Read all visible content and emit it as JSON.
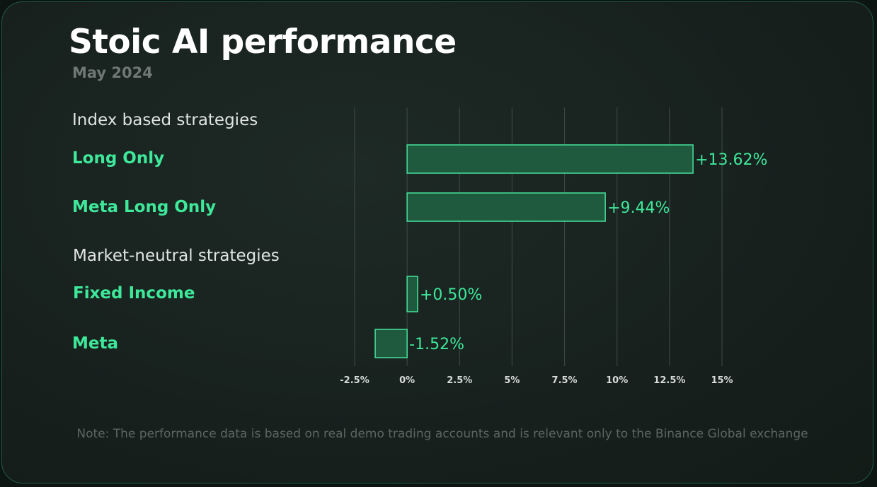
{
  "header": {
    "title": "Stoic AI performance",
    "subtitle": "May 2024"
  },
  "sections": [
    {
      "label": "Index based strategies"
    },
    {
      "label": "Market-neutral strategies"
    }
  ],
  "colors": {
    "accent": "#3ee89a",
    "bar_fill": "#1f5a3e",
    "bar_stroke": "#46e39c",
    "grid": "#3a4440",
    "tick": "#d6dcd9"
  },
  "chart_data": {
    "type": "bar",
    "orientation": "horizontal",
    "categories": [
      "Long Only",
      "Meta Long Only",
      "Fixed Income",
      "Meta"
    ],
    "values": [
      13.62,
      9.44,
      0.5,
      -1.52
    ],
    "value_labels": [
      "+13.62%",
      "+9.44%",
      "+0.50%",
      "-1.52%"
    ],
    "xlim": [
      -2.5,
      15
    ],
    "xticks": [
      -2.5,
      0,
      2.5,
      5,
      7.5,
      10,
      12.5,
      15
    ],
    "xtick_labels": [
      "-2.5%",
      "0%",
      "2.5%",
      "5%",
      "7.5%",
      "10%",
      "12.5%",
      "15%"
    ],
    "grid": "vertical",
    "legend": "none"
  },
  "note": "Note: The performance data is based on real demo trading accounts and is relevant only to the Binance Global exchange"
}
